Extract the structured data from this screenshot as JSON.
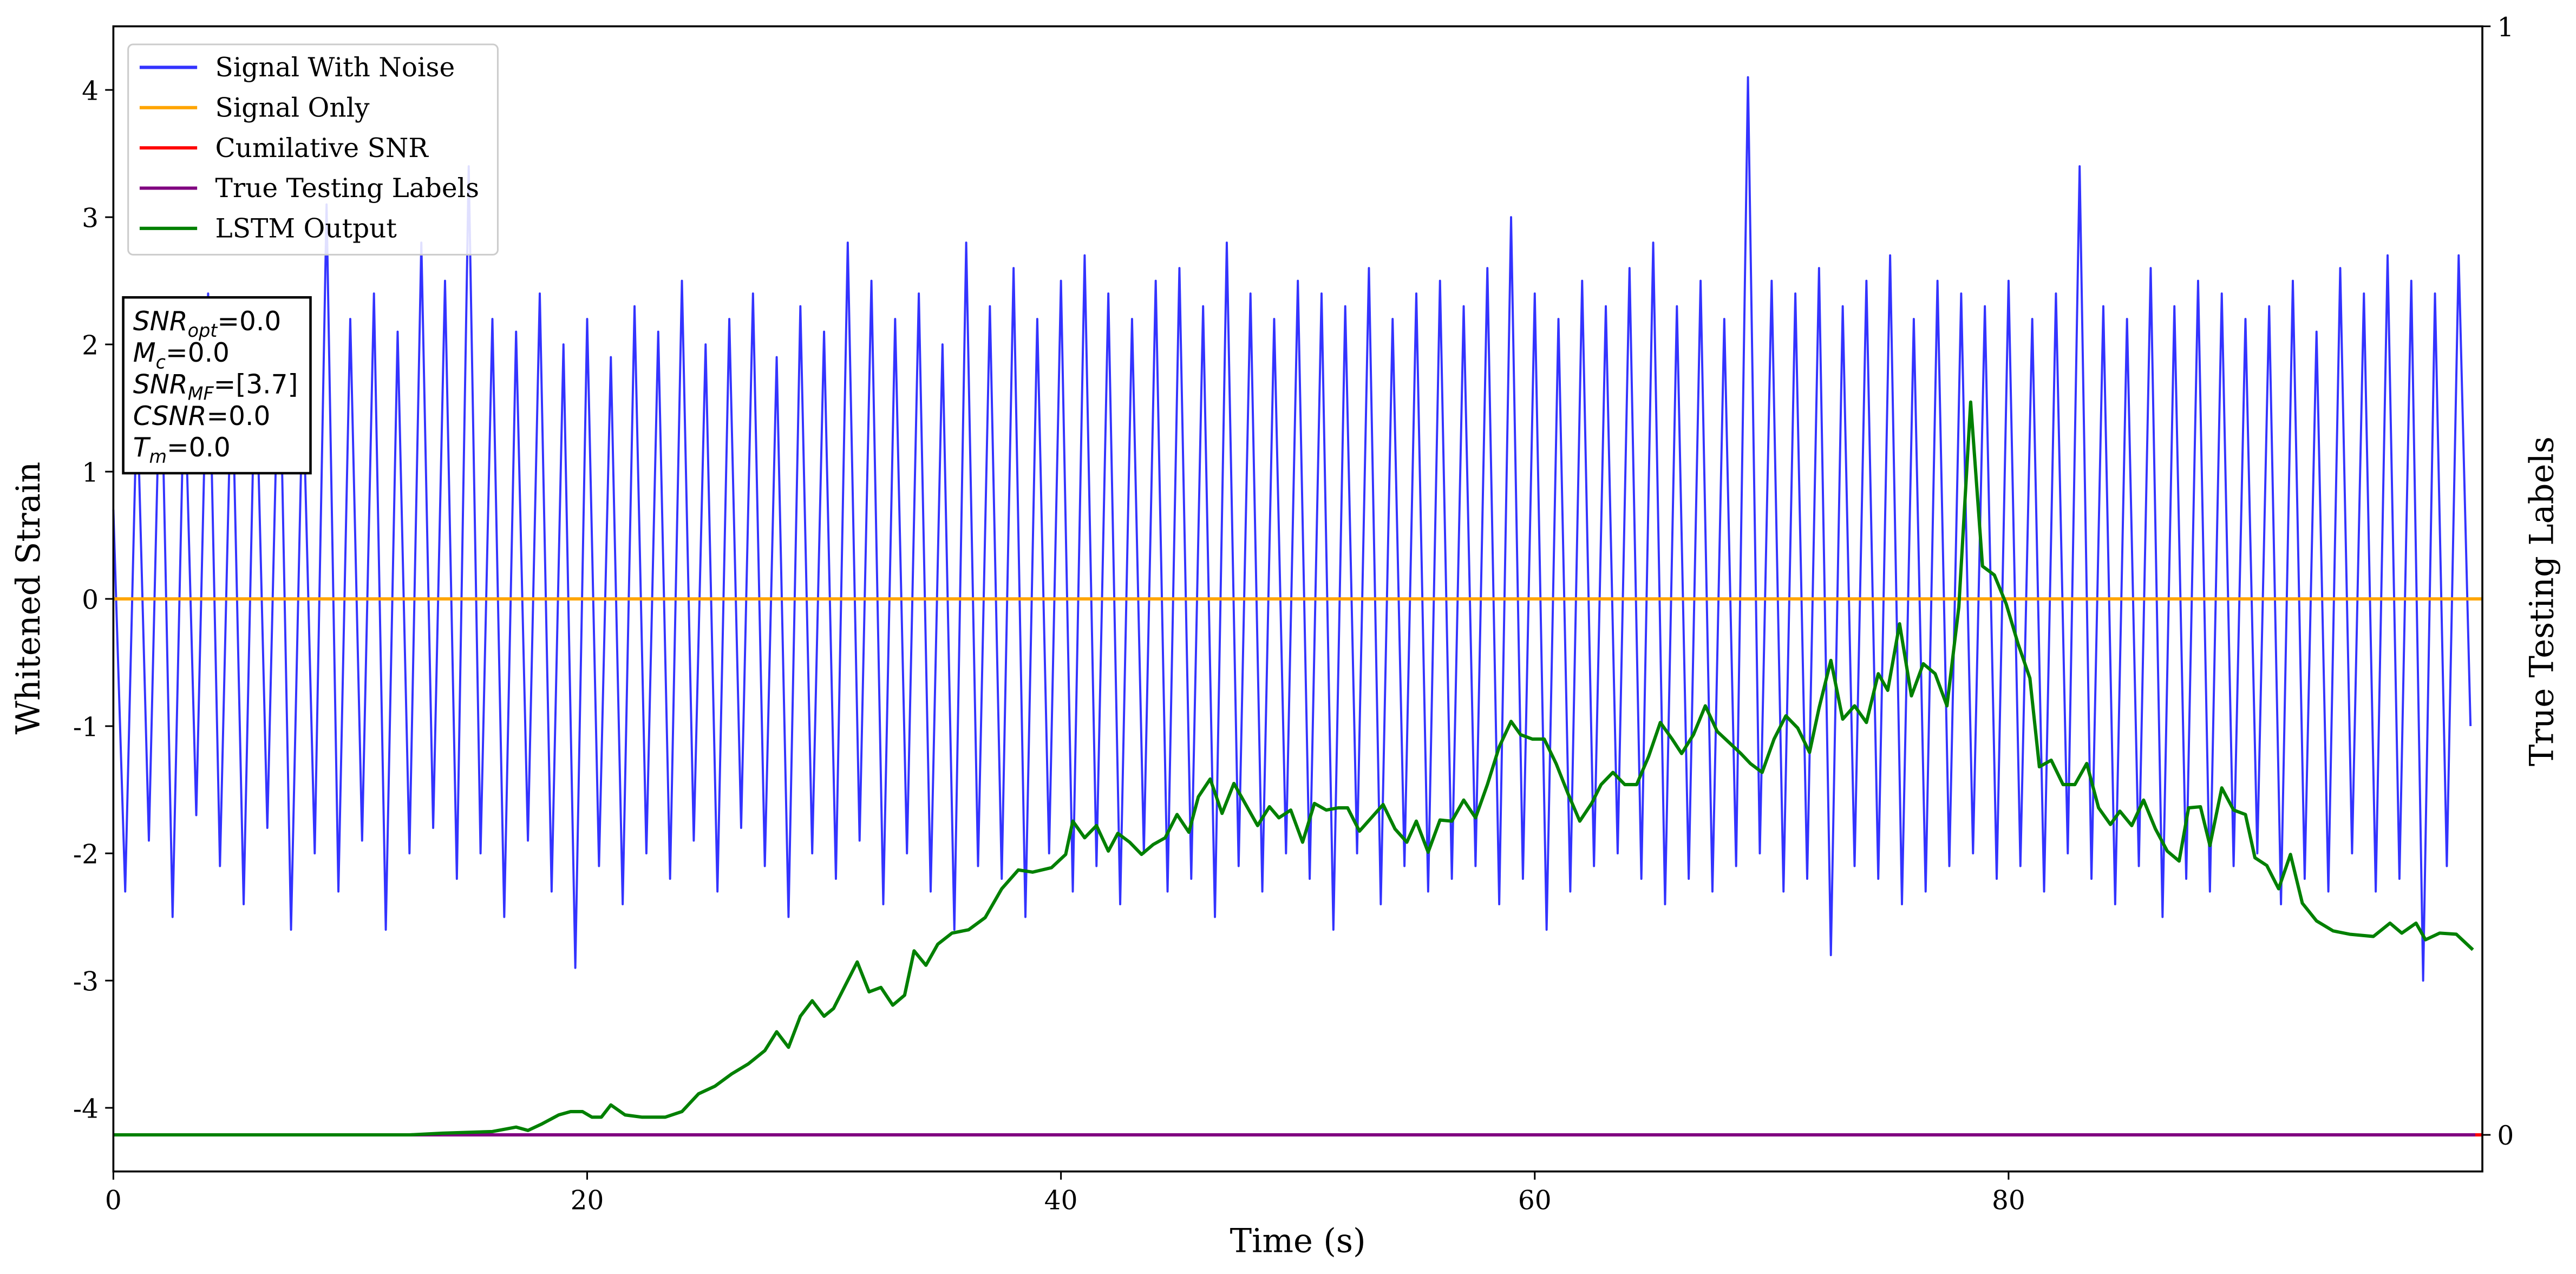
{
  "chart_data": {
    "type": "line",
    "xlabel": "Time (s)",
    "ylabel": "Whitened Strain",
    "y2label": "True Testing Labels",
    "xlim": [
      0,
      100
    ],
    "ylim": [
      -4.5,
      4.5
    ],
    "y2lim": [
      -0.033,
      1
    ],
    "xticks": [
      0,
      20,
      40,
      60,
      80
    ],
    "yticks": [
      -4,
      -3,
      -2,
      -1,
      0,
      1,
      2,
      3,
      4
    ],
    "y2ticks": [
      0,
      1
    ],
    "legend": "upper left",
    "annotation": [
      {
        "symbol": "SNR",
        "sub": "opt",
        "text": "=0.0"
      },
      {
        "symbol": "M",
        "sub": "c",
        "text": "=0.0"
      },
      {
        "symbol": "SNR",
        "sub": "MF",
        "text": "=[3.7]"
      },
      {
        "symbol": "CSNR",
        "sub": null,
        "text": "=0.0"
      },
      {
        "symbol": "T",
        "sub": "m",
        "text": "=0.0"
      }
    ],
    "series": [
      {
        "name": "Signal With Noise",
        "color": "#3333ff",
        "axis": "y",
        "x": [
          0,
          0.5,
          1,
          1.5,
          2,
          2.5,
          3,
          3.5,
          4,
          4.5,
          5,
          5.5,
          6,
          6.5,
          7,
          7.5,
          8,
          8.5,
          9,
          9.5,
          10,
          10.5,
          11,
          11.5,
          12,
          12.5,
          13,
          13.5,
          14,
          14.5,
          15,
          15.5,
          16,
          16.5,
          17,
          17.5,
          18,
          18.5,
          19,
          19.5,
          20,
          20.5,
          21,
          21.5,
          22,
          22.5,
          23,
          23.5,
          24,
          24.5,
          25,
          25.5,
          26,
          26.5,
          27,
          27.5,
          28,
          28.5,
          29,
          29.5,
          30,
          30.5,
          31,
          31.5,
          32,
          32.5,
          33,
          33.5,
          34,
          34.5,
          35,
          35.5,
          36,
          36.5,
          37,
          37.5,
          38,
          38.5,
          39,
          39.5,
          40,
          40.5,
          41,
          41.5,
          42,
          42.5,
          43,
          43.5,
          44,
          44.5,
          45,
          45.5,
          46,
          46.5,
          47,
          47.5,
          48,
          48.5,
          49,
          49.5,
          50,
          50.5,
          51,
          51.5,
          52,
          52.5,
          53,
          53.5,
          54,
          54.5,
          55,
          55.5,
          56,
          56.5,
          57,
          57.5,
          58,
          58.5,
          59,
          59.5,
          60,
          60.5,
          61,
          61.5,
          62,
          62.5,
          63,
          63.5,
          64,
          64.5,
          65,
          65.5,
          66,
          66.5,
          67,
          67.5,
          68,
          68.5,
          69,
          69.5,
          70,
          70.5,
          71,
          71.5,
          72,
          72.5,
          73,
          73.5,
          74,
          74.5,
          75,
          75.5,
          76,
          76.5,
          77,
          77.5,
          78,
          78.5,
          79,
          79.5,
          80,
          80.5,
          81,
          81.5,
          82,
          82.5,
          83,
          83.5,
          84,
          84.5,
          85,
          85.5,
          86,
          86.5,
          87,
          87.5,
          88,
          88.5,
          89,
          89.5,
          90,
          90.5,
          91,
          91.5,
          92,
          92.5,
          93,
          93.5,
          94,
          94.5,
          95,
          95.5,
          96,
          96.5,
          97,
          97.5,
          98,
          98.5,
          99,
          99.5
        ],
        "values": [
          0.7,
          -2.3,
          1.6,
          -1.9,
          2.1,
          -2.5,
          1.8,
          -1.7,
          2.4,
          -2.1,
          1.9,
          -2.4,
          2.0,
          -1.8,
          2.2,
          -2.6,
          1.7,
          -2.0,
          3.1,
          -2.3,
          2.2,
          -1.9,
          2.4,
          -2.6,
          2.1,
          -2.0,
          2.8,
          -1.8,
          2.5,
          -2.2,
          3.4,
          -2.0,
          2.2,
          -2.5,
          2.1,
          -1.9,
          2.4,
          -2.3,
          2.0,
          -2.9,
          2.2,
          -2.1,
          1.9,
          -2.4,
          2.3,
          -2.0,
          2.1,
          -2.2,
          2.5,
          -1.9,
          2.0,
          -2.3,
          2.2,
          -1.8,
          2.4,
          -2.1,
          1.9,
          -2.5,
          2.3,
          -2.0,
          2.1,
          -2.2,
          2.8,
          -1.9,
          2.5,
          -2.4,
          2.2,
          -2.0,
          2.4,
          -2.3,
          2.0,
          -2.6,
          2.8,
          -2.1,
          2.3,
          -2.2,
          2.6,
          -2.5,
          2.2,
          -2.0,
          2.5,
          -2.3,
          2.7,
          -2.1,
          2.4,
          -2.4,
          2.2,
          -2.0,
          2.5,
          -2.3,
          2.6,
          -2.2,
          2.3,
          -2.5,
          2.8,
          -2.1,
          2.4,
          -2.3,
          2.2,
          -2.0,
          2.5,
          -2.2,
          2.4,
          -2.6,
          2.3,
          -2.0,
          2.6,
          -2.4,
          2.2,
          -2.1,
          2.4,
          -2.3,
          2.5,
          -2.2,
          2.3,
          -2.1,
          2.6,
          -2.4,
          3.0,
          -2.2,
          2.4,
          -2.6,
          2.2,
          -2.3,
          2.5,
          -2.1,
          2.3,
          -2.0,
          2.6,
          -2.2,
          2.8,
          -2.4,
          2.3,
          -2.2,
          2.5,
          -2.3,
          2.2,
          -2.1,
          4.1,
          -2.0,
          2.5,
          -2.3,
          2.4,
          -2.2,
          2.6,
          -2.8,
          2.3,
          -2.1,
          2.5,
          -2.2,
          2.7,
          -2.4,
          2.2,
          -2.3,
          2.5,
          -2.1,
          2.4,
          -2.0,
          2.3,
          -2.2,
          2.5,
          -2.1,
          2.2,
          -2.3,
          2.4,
          -2.0,
          3.4,
          -2.2,
          2.3,
          -2.4,
          2.2,
          -2.1,
          2.6,
          -2.5,
          2.3,
          -2.2,
          2.5,
          -2.3,
          2.4,
          -2.1,
          2.2,
          -2.0,
          2.3,
          -2.4,
          2.5,
          -2.2,
          2.1,
          -2.3,
          2.6,
          -2.0,
          2.4,
          -2.3,
          2.7,
          -2.2,
          2.5,
          -3.0,
          2.4,
          -2.1,
          2.7,
          -1.0
        ]
      },
      {
        "name": "Signal Only",
        "color": "#ffa500",
        "axis": "y",
        "x": [
          0,
          100
        ],
        "values": [
          0,
          0
        ]
      },
      {
        "name": "Cumilative SNR",
        "color": "#ff0000",
        "axis": "y2",
        "x": [
          0,
          100
        ],
        "values": [
          0,
          0
        ]
      },
      {
        "name": "True Testing Labels",
        "color": "#800080",
        "axis": "y2",
        "x": [
          0,
          99.7
        ],
        "values": [
          0,
          0
        ]
      },
      {
        "name": "LSTM Output",
        "color": "#008000",
        "axis": "y2",
        "x": [
          0,
          12.5,
          13.9,
          16,
          17,
          17.5,
          18.1,
          18.8,
          19.3,
          19.8,
          20.2,
          20.6,
          21,
          21.6,
          22.3,
          23.3,
          24,
          24.7,
          25.4,
          26.1,
          26.8,
          27.5,
          28,
          28.5,
          29,
          29.5,
          30,
          30.4,
          30.9,
          31.4,
          31.9,
          32.4,
          32.9,
          33.4,
          33.8,
          34.3,
          34.8,
          35.4,
          36.1,
          36.8,
          37.5,
          38.2,
          38.8,
          39.6,
          40.2,
          40.5,
          41,
          41.5,
          42,
          42.4,
          42.9,
          43.4,
          43.9,
          44.4,
          44.9,
          45.4,
          45.8,
          46.3,
          46.8,
          47.3,
          47.8,
          48.3,
          48.8,
          49.2,
          49.7,
          50.2,
          50.7,
          51.2,
          51.7,
          52.1,
          52.6,
          53.1,
          53.6,
          54.1,
          54.6,
          55,
          55.5,
          56,
          56.5,
          57,
          57.5,
          58,
          58.5,
          59,
          59.4,
          59.9,
          60.4,
          60.9,
          61.4,
          61.9,
          62.4,
          62.8,
          63.3,
          63.8,
          64.3,
          64.8,
          65.3,
          65.8,
          66.2,
          66.7,
          67.2,
          67.7,
          68.2,
          68.7,
          69.1,
          69.6,
          70.1,
          70.6,
          71.1,
          71.6,
          72,
          72.5,
          73,
          73.5,
          74,
          74.5,
          74.9,
          75.4,
          75.9,
          76.4,
          76.9,
          77.4,
          77.9,
          78.4,
          78.9,
          79.4,
          79.9,
          80.4,
          80.9,
          81.3,
          81.8,
          82.3,
          82.8,
          83.3,
          83.8,
          84.3,
          84.7,
          85.2,
          85.7,
          86.2,
          86.7,
          87.2,
          87.6,
          88.1,
          88.5,
          89,
          89.5,
          90,
          90.4,
          90.9,
          91.4,
          91.9,
          92.4,
          93,
          93.7,
          94.4,
          95.4,
          96.1,
          96.6,
          97.2,
          97.6,
          98.2,
          98.9,
          99.6
        ],
        "values": [
          0,
          0,
          0.0015,
          0.003,
          0.007,
          0.004,
          0.01,
          0.018,
          0.021,
          0.021,
          0.016,
          0.016,
          0.027,
          0.018,
          0.016,
          0.016,
          0.021,
          0.037,
          0.044,
          0.055,
          0.064,
          0.076,
          0.093,
          0.079,
          0.107,
          0.121,
          0.107,
          0.114,
          0.135,
          0.156,
          0.129,
          0.133,
          0.117,
          0.126,
          0.166,
          0.153,
          0.172,
          0.182,
          0.185,
          0.196,
          0.222,
          0.239,
          0.237,
          0.241,
          0.253,
          0.283,
          0.268,
          0.279,
          0.256,
          0.272,
          0.264,
          0.253,
          0.262,
          0.268,
          0.289,
          0.273,
          0.305,
          0.321,
          0.29,
          0.317,
          0.298,
          0.279,
          0.296,
          0.286,
          0.293,
          0.264,
          0.299,
          0.293,
          0.295,
          0.295,
          0.274,
          0.286,
          0.298,
          0.276,
          0.264,
          0.283,
          0.255,
          0.284,
          0.283,
          0.302,
          0.286,
          0.316,
          0.35,
          0.373,
          0.361,
          0.357,
          0.357,
          0.335,
          0.308,
          0.283,
          0.299,
          0.316,
          0.327,
          0.316,
          0.316,
          0.341,
          0.372,
          0.357,
          0.344,
          0.361,
          0.387,
          0.364,
          0.354,
          0.344,
          0.335,
          0.327,
          0.357,
          0.378,
          0.367,
          0.345,
          0.385,
          0.428,
          0.375,
          0.387,
          0.372,
          0.416,
          0.401,
          0.461,
          0.396,
          0.425,
          0.416,
          0.387,
          0.476,
          0.661,
          0.513,
          0.505,
          0.479,
          0.443,
          0.412,
          0.332,
          0.338,
          0.316,
          0.316,
          0.335,
          0.295,
          0.28,
          0.292,
          0.279,
          0.302,
          0.276,
          0.256,
          0.247,
          0.295,
          0.296,
          0.261,
          0.313,
          0.293,
          0.289,
          0.25,
          0.243,
          0.222,
          0.253,
          0.209,
          0.193,
          0.184,
          0.181,
          0.179,
          0.191,
          0.182,
          0.191,
          0.176,
          0.182,
          0.181,
          0.167
        ]
      }
    ]
  }
}
